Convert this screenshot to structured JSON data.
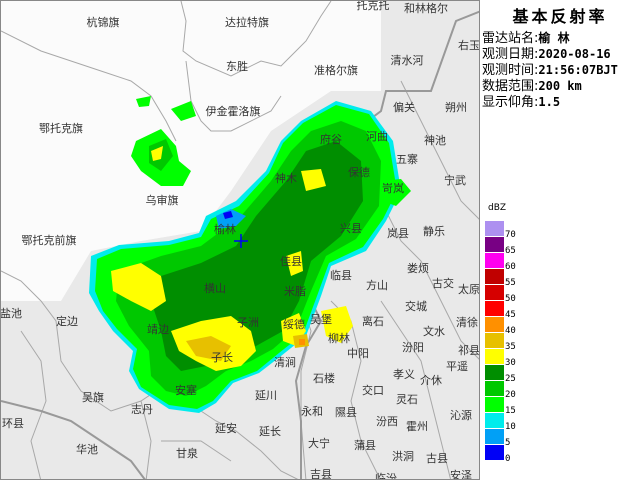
{
  "product_title": "基本反射率",
  "info": {
    "station_label": "雷达站名:",
    "station": "榆 林",
    "date_label": "观测日期:",
    "date": "2020-08-16",
    "time_label": "观测时间:",
    "time": "21:56:07BJT",
    "range_label": "数据范围:",
    "range": "200 km",
    "elevation_label": "显示仰角:",
    "elevation": "1.5"
  },
  "legend": {
    "unit": "dBZ",
    "levels": [
      {
        "value": "70",
        "color": "#ad90f0"
      },
      {
        "value": "65",
        "color": "#780084"
      },
      {
        "value": "60",
        "color": "#ff00f0"
      },
      {
        "value": "55",
        "color": "#c00000"
      },
      {
        "value": "50",
        "color": "#d60000"
      },
      {
        "value": "45",
        "color": "#ff0000"
      },
      {
        "value": "40",
        "color": "#ff9000"
      },
      {
        "value": "35",
        "color": "#e7c000"
      },
      {
        "value": "30",
        "color": "#ffff00"
      },
      {
        "value": "25",
        "color": "#008e00"
      },
      {
        "value": "20",
        "color": "#00c800"
      },
      {
        "value": "15",
        "color": "#00ff00"
      },
      {
        "value": "10",
        "color": "#00ecec"
      },
      {
        "value": "5",
        "color": "#01a0f6"
      },
      {
        "value": "0",
        "color": "#0000f6"
      }
    ]
  },
  "map": {
    "radar_marker": "crosshair-icon",
    "labels": [
      "杭锦旗",
      "达拉特旗",
      "托克托",
      "和林格尔",
      "右玉",
      "东胜",
      "准格尔旗",
      "清水河",
      "伊金霍洛旗",
      "偏关",
      "朔州",
      "鄂托克旗",
      "府谷",
      "河曲",
      "神池",
      "五寨",
      "宁武",
      "神木",
      "保德",
      "岢岚",
      "乌审旗",
      "榆林",
      "兴县",
      "岚县",
      "静乐",
      "鄂托克前旗",
      "佳县",
      "娄烦",
      "临县",
      "方山",
      "古交",
      "太原",
      "横山",
      "米脂",
      "交城",
      "盐池",
      "定边",
      "靖边",
      "子洲",
      "吴堡",
      "绥德",
      "离石",
      "清徐",
      "文水",
      "柳林",
      "汾阳",
      "祁县",
      "中阳",
      "子长",
      "清涧",
      "平遥",
      "孝义",
      "介休",
      "石楼",
      "交口",
      "安塞",
      "延川",
      "吴旗",
      "灵石",
      "志丹",
      "永和",
      "隰县",
      "沁源",
      "环县",
      "汾西",
      "霍州",
      "延安",
      "延长",
      "华池",
      "大宁",
      "蒲县",
      "甘泉",
      "洪洞",
      "古县",
      "吉县",
      "临汾",
      "安泽"
    ]
  }
}
